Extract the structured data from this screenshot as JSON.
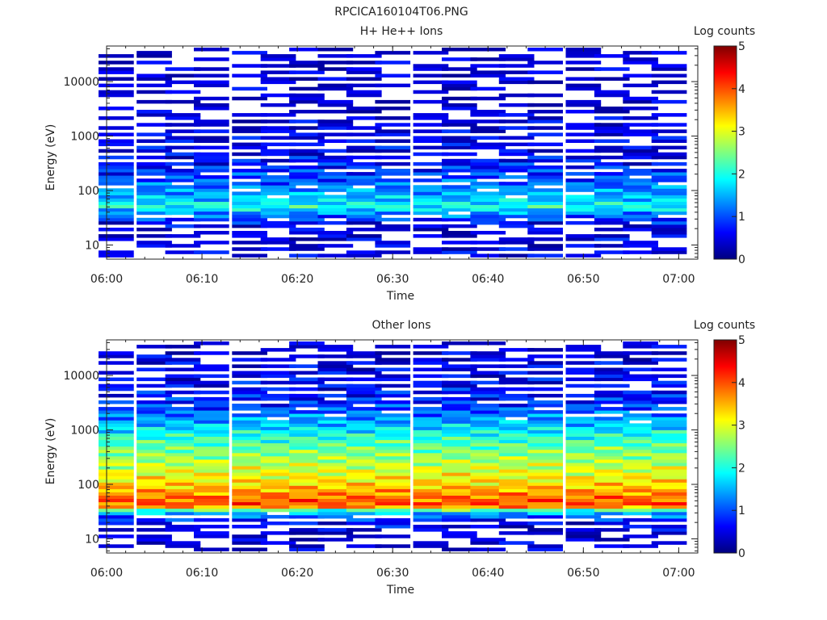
{
  "figure_title": "RPCICA160104T06.PNG",
  "colors": {
    "colormap": [
      "#00007f",
      "#0000ff",
      "#007fff",
      "#00ffff",
      "#7fff7f",
      "#ffff00",
      "#ff7f00",
      "#ff0000",
      "#7f0000"
    ],
    "axis": "#222222",
    "background": "#ffffff"
  },
  "chart_data": [
    {
      "type": "heatmap",
      "title": "H+ He++ Ions",
      "xlabel": "Time",
      "ylabel": "Energy (eV)",
      "y_scale": "log",
      "ylim": [
        5.5,
        45000
      ],
      "xlim": [
        "06:00",
        "07:02"
      ],
      "x_ticks": [
        "06:00",
        "06:10",
        "06:20",
        "06:30",
        "06:40",
        "06:50",
        "07:00"
      ],
      "y_ticks": [
        "10",
        "100",
        "1000",
        "10000"
      ],
      "colorbar": {
        "label": "Log counts",
        "range": [
          0,
          5
        ],
        "ticks": [
          "0",
          "1",
          "2",
          "3",
          "4",
          "5"
        ]
      },
      "time_bins": [
        "06:01",
        "06:05",
        "06:08",
        "06:11",
        "06:15",
        "06:18",
        "06:21",
        "06:24",
        "06:27",
        "06:30",
        "06:34",
        "06:37",
        "06:40",
        "06:43",
        "06:46",
        "06:50",
        "06:53",
        "06:56",
        "06:59"
      ],
      "profile": [
        [
          10,
          0.4
        ],
        [
          18,
          0.4
        ],
        [
          25,
          0.6
        ],
        [
          33,
          1.0
        ],
        [
          40,
          1.4
        ],
        [
          50,
          2.0
        ],
        [
          70,
          1.6
        ],
        [
          100,
          1.3
        ],
        [
          150,
          1.0
        ],
        [
          250,
          0.8
        ],
        [
          500,
          0.5
        ],
        [
          1000,
          0.4
        ],
        [
          3000,
          0.3
        ],
        [
          10000,
          0.25
        ],
        [
          40000,
          0.2
        ]
      ]
    },
    {
      "type": "heatmap",
      "title": "Other Ions",
      "xlabel": "Time",
      "ylabel": "Energy (eV)",
      "y_scale": "log",
      "ylim": [
        5.5,
        45000
      ],
      "xlim": [
        "06:00",
        "07:02"
      ],
      "x_ticks": [
        "06:00",
        "06:10",
        "06:20",
        "06:30",
        "06:40",
        "06:50",
        "07:00"
      ],
      "y_ticks": [
        "10",
        "100",
        "1000",
        "10000"
      ],
      "colorbar": {
        "label": "Log counts",
        "range": [
          0,
          5
        ],
        "ticks": [
          "0",
          "1",
          "2",
          "3",
          "4",
          "5"
        ]
      },
      "time_bins": [
        "06:01",
        "06:05",
        "06:08",
        "06:11",
        "06:15",
        "06:18",
        "06:21",
        "06:24",
        "06:27",
        "06:30",
        "06:34",
        "06:37",
        "06:40",
        "06:43",
        "06:46",
        "06:50",
        "06:53",
        "06:56",
        "06:59"
      ],
      "profile": [
        [
          10,
          0.3
        ],
        [
          20,
          0.6
        ],
        [
          28,
          1.2
        ],
        [
          33,
          2.0
        ],
        [
          38,
          3.6
        ],
        [
          45,
          4.0
        ],
        [
          60,
          3.8
        ],
        [
          100,
          3.3
        ],
        [
          200,
          2.9
        ],
        [
          400,
          2.5
        ],
        [
          800,
          2.0
        ],
        [
          1500,
          1.4
        ],
        [
          3000,
          0.8
        ],
        [
          8000,
          0.5
        ],
        [
          40000,
          0.3
        ]
      ]
    }
  ]
}
